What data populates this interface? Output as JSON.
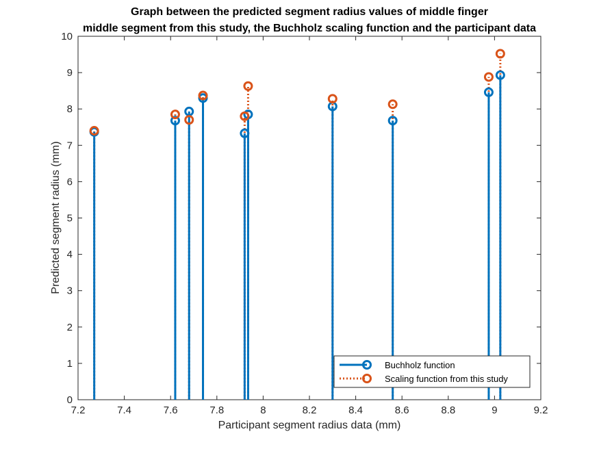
{
  "chart_data": {
    "type": "stem",
    "title": [
      "Graph between the predicted segment radius values of middle finger",
      "middle segment from this study, the Buchholz scaling function and the participant data"
    ],
    "xlabel": "Participant segment radius data (mm)",
    "ylabel": "Predicted segment radius (mm)",
    "xlim": [
      7.2,
      9.2
    ],
    "ylim": [
      0,
      10
    ],
    "xticks": [
      7.2,
      7.4,
      7.6,
      7.8,
      8,
      8.2,
      8.4,
      8.6,
      8.8,
      9,
      9.2
    ],
    "xtick_labels": [
      "7.2",
      "7.4",
      "7.6",
      "7.8",
      "8",
      "8.2",
      "8.4",
      "8.6",
      "8.8",
      "9",
      "9.2"
    ],
    "yticks": [
      0,
      1,
      2,
      3,
      4,
      5,
      6,
      7,
      8,
      9,
      10
    ],
    "ytick_labels": [
      "0",
      "1",
      "2",
      "3",
      "4",
      "5",
      "6",
      "7",
      "8",
      "9",
      "10"
    ],
    "grid": false,
    "legend_position": "bottom-right",
    "x": [
      7.27,
      7.62,
      7.68,
      7.74,
      7.92,
      7.935,
      8.3,
      8.56,
      8.975,
      9.025
    ],
    "series": [
      {
        "name": "Buchholz function",
        "style": "solid",
        "color": "#0072BD",
        "values": [
          7.37,
          7.68,
          7.93,
          8.3,
          7.33,
          7.85,
          8.07,
          7.68,
          8.46,
          8.93
        ]
      },
      {
        "name": "Scaling function from this study",
        "style": "dotted",
        "color": "#D95319",
        "values": [
          7.4,
          7.85,
          7.7,
          8.37,
          7.8,
          8.63,
          8.28,
          8.13,
          8.88,
          9.52
        ]
      }
    ]
  }
}
